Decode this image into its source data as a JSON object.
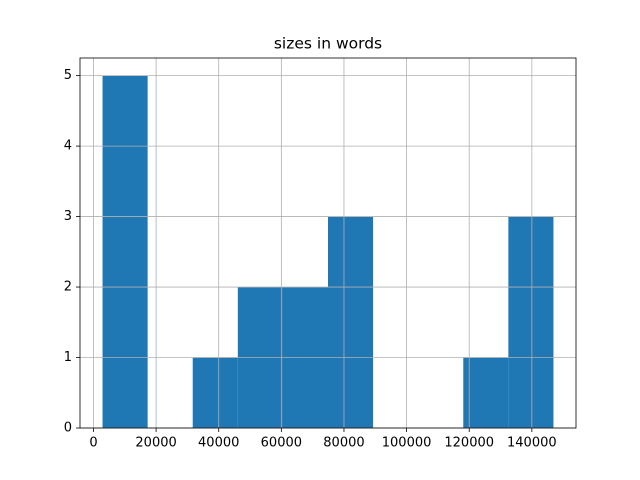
{
  "chart_data": {
    "type": "histogram",
    "title": "sizes in words",
    "bins": [
      2900,
      17300,
      31700,
      46100,
      60500,
      74900,
      89300,
      103700,
      118100,
      132500,
      146900
    ],
    "counts": [
      5,
      0,
      1,
      2,
      2,
      3,
      0,
      0,
      1,
      3
    ],
    "color": "#1f77b4",
    "xlim": [
      -4300,
      154100
    ],
    "xticks": [
      0,
      20000,
      40000,
      60000,
      80000,
      100000,
      120000,
      140000
    ],
    "ylim": [
      0,
      5.25
    ],
    "yticks": [
      0,
      1,
      2,
      3,
      4,
      5
    ],
    "grid": true
  }
}
